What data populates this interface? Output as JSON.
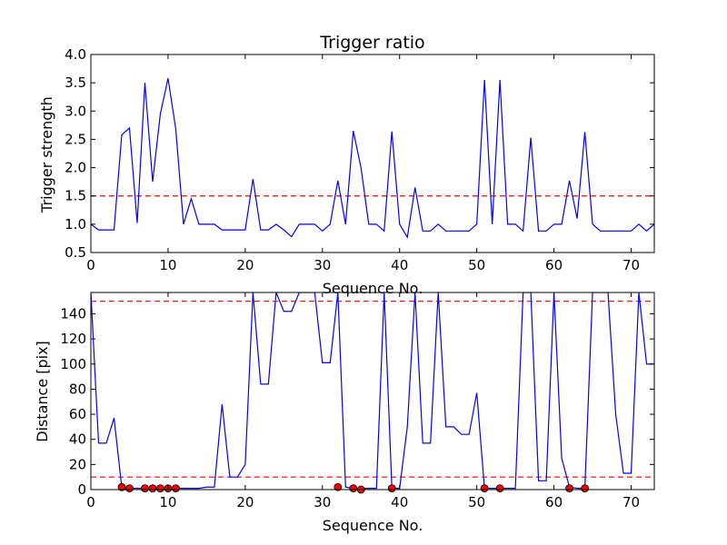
{
  "chart_data": [
    {
      "type": "line",
      "title": "Trigger ratio",
      "xlabel": "Sequence No.",
      "ylabel": "Trigger strength",
      "xlim": [
        0,
        73
      ],
      "ylim": [
        0.5,
        4.0
      ],
      "xticks": [
        0,
        10,
        20,
        30,
        40,
        50,
        60,
        70
      ],
      "yticks": [
        0.5,
        1.0,
        1.5,
        2.0,
        2.5,
        3.0,
        3.5,
        4.0
      ],
      "ytick_decimals": 1,
      "grid": false,
      "line_color": "#0000ff",
      "threshold": {
        "value": 1.5,
        "color": "#ff0000",
        "style": "dashed"
      },
      "x": [
        0,
        1,
        2,
        3,
        4,
        5,
        6,
        7,
        8,
        9,
        10,
        11,
        12,
        13,
        14,
        15,
        16,
        17,
        18,
        19,
        20,
        21,
        22,
        23,
        24,
        25,
        26,
        27,
        28,
        29,
        30,
        31,
        32,
        33,
        34,
        35,
        36,
        37,
        38,
        39,
        40,
        41,
        42,
        43,
        44,
        45,
        46,
        47,
        48,
        49,
        50,
        51,
        52,
        53,
        54,
        55,
        56,
        57,
        58,
        59,
        60,
        61,
        62,
        63,
        64,
        65,
        66,
        67,
        68,
        69,
        70,
        71,
        72,
        73
      ],
      "values": [
        1.0,
        0.9,
        0.9,
        0.9,
        2.58,
        2.7,
        1.02,
        3.5,
        1.75,
        2.95,
        3.58,
        2.68,
        1.0,
        1.45,
        1.0,
        1.0,
        1.0,
        0.9,
        0.9,
        0.9,
        0.9,
        1.8,
        0.9,
        0.9,
        1.0,
        0.9,
        0.78,
        1.0,
        1.0,
        1.0,
        0.88,
        1.0,
        1.77,
        1.0,
        2.65,
        2.0,
        1.0,
        1.0,
        0.88,
        2.64,
        1.0,
        0.77,
        1.65,
        0.88,
        0.88,
        1.0,
        0.88,
        0.88,
        0.88,
        0.88,
        1.0,
        3.55,
        1.0,
        3.55,
        1.0,
        1.0,
        0.88,
        2.53,
        0.88,
        0.88,
        1.0,
        1.0,
        1.77,
        1.1,
        2.63,
        1.0,
        0.88,
        0.88,
        0.88,
        0.88,
        0.88,
        1.0,
        0.88,
        1.0
      ]
    },
    {
      "type": "line",
      "title": "",
      "xlabel": "Sequence No.",
      "ylabel": "Distance [pix]",
      "xlim": [
        0,
        73
      ],
      "ylim": [
        0,
        157
      ],
      "xticks": [
        0,
        10,
        20,
        30,
        40,
        50,
        60,
        70
      ],
      "yticks": [
        0,
        20,
        40,
        60,
        80,
        100,
        120,
        140
      ],
      "ytick_decimals": 0,
      "grid": false,
      "line_color": "#0000ff",
      "thresholds": [
        {
          "value": 150,
          "color": "#ff0000",
          "style": "dashed"
        },
        {
          "value": 10,
          "color": "#ff0000",
          "style": "dashed"
        }
      ],
      "x": [
        0,
        1,
        2,
        3,
        4,
        5,
        6,
        7,
        8,
        9,
        10,
        11,
        12,
        13,
        14,
        15,
        16,
        17,
        18,
        19,
        20,
        21,
        22,
        23,
        24,
        25,
        26,
        27,
        28,
        29,
        30,
        31,
        32,
        33,
        34,
        35,
        36,
        37,
        38,
        39,
        40,
        41,
        42,
        43,
        44,
        45,
        46,
        47,
        48,
        49,
        50,
        51,
        52,
        53,
        54,
        55,
        56,
        57,
        58,
        59,
        60,
        61,
        62,
        63,
        64,
        65,
        66,
        67,
        68,
        69,
        70,
        71,
        72,
        73
      ],
      "values": [
        157,
        37,
        37,
        57,
        2,
        1,
        1,
        1,
        1,
        1,
        1,
        1,
        1,
        1,
        1,
        2,
        2,
        68,
        10,
        10,
        20,
        157,
        84,
        84,
        157,
        142,
        142,
        157,
        157,
        157,
        101,
        101,
        157,
        2,
        1,
        1,
        1,
        1,
        157,
        1,
        1,
        50,
        157,
        37,
        37,
        157,
        50,
        50,
        44,
        44,
        77,
        1,
        1,
        1,
        1,
        1,
        157,
        157,
        7,
        7,
        157,
        25,
        2,
        1,
        1,
        157,
        157,
        157,
        60,
        13,
        13,
        157,
        100,
        100
      ],
      "marker_series": {
        "name": "",
        "color": "#ff0000",
        "x": [
          4,
          5,
          7,
          8,
          9,
          10,
          11,
          32,
          34,
          35,
          39,
          51,
          53,
          62,
          64
        ],
        "y": [
          2,
          1,
          1,
          1,
          1,
          1,
          1,
          2,
          1,
          0,
          1,
          1,
          1,
          1,
          1
        ]
      }
    }
  ]
}
